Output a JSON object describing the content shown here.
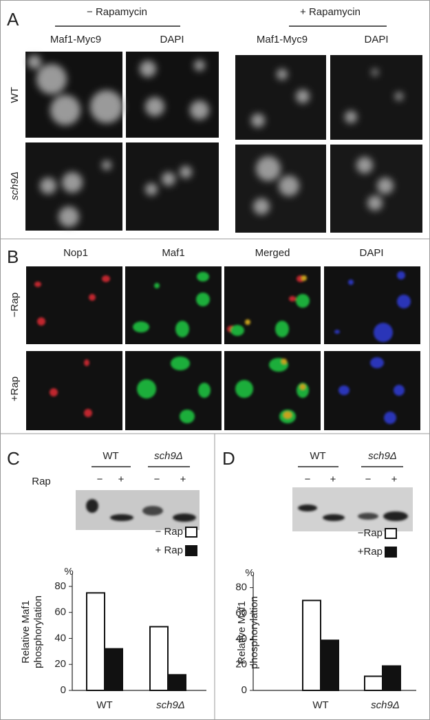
{
  "panel_a": {
    "label": "A",
    "conditions": [
      "− Rapamycin",
      "+ Rapamycin"
    ],
    "columns": [
      "Maf1-Myc9",
      "DAPI",
      "Maf1-Myc9",
      "DAPI"
    ],
    "rows": [
      "WT",
      "sch9Δ"
    ]
  },
  "panel_b": {
    "label": "B",
    "columns": [
      "Nop1",
      "Maf1",
      "Merged",
      "DAPI"
    ],
    "rows": [
      "−Rap",
      "+Rap"
    ]
  },
  "panel_c": {
    "label": "C",
    "lanes": [
      "WT",
      "sch9Δ"
    ],
    "treatment": "Rap",
    "signs": [
      "−",
      "+",
      "−",
      "+"
    ]
  },
  "panel_d": {
    "label": "D",
    "lanes": [
      "WT",
      "sch9Δ"
    ],
    "signs": [
      "−",
      "+",
      "−",
      "+"
    ]
  },
  "chart_data": [
    {
      "type": "bar",
      "y_unit": "%",
      "ylabel": [
        "Relative Maf1",
        "phosphorylation"
      ],
      "categories": [
        "WT",
        "sch9Δ"
      ],
      "ylim": [
        0,
        90
      ],
      "yticks": [
        0,
        20,
        40,
        60,
        80
      ],
      "series": [
        {
          "name": "− Rap",
          "color": "#ffffff",
          "values": [
            75,
            49
          ]
        },
        {
          "name": "+ Rap",
          "color": "#111111",
          "values": [
            32,
            12
          ]
        }
      ]
    },
    {
      "type": "bar",
      "y_unit": "%",
      "ylabel": [
        "Relative Maf1",
        "phosphorylation"
      ],
      "categories": [
        "WT",
        "sch9Δ"
      ],
      "ylim": [
        0,
        90
      ],
      "yticks": [
        0,
        20,
        40,
        60,
        80
      ],
      "series": [
        {
          "name": "−Rap",
          "color": "#ffffff",
          "values": [
            70,
            11
          ]
        },
        {
          "name": "+Rap",
          "color": "#111111",
          "values": [
            39,
            19
          ]
        }
      ]
    }
  ]
}
